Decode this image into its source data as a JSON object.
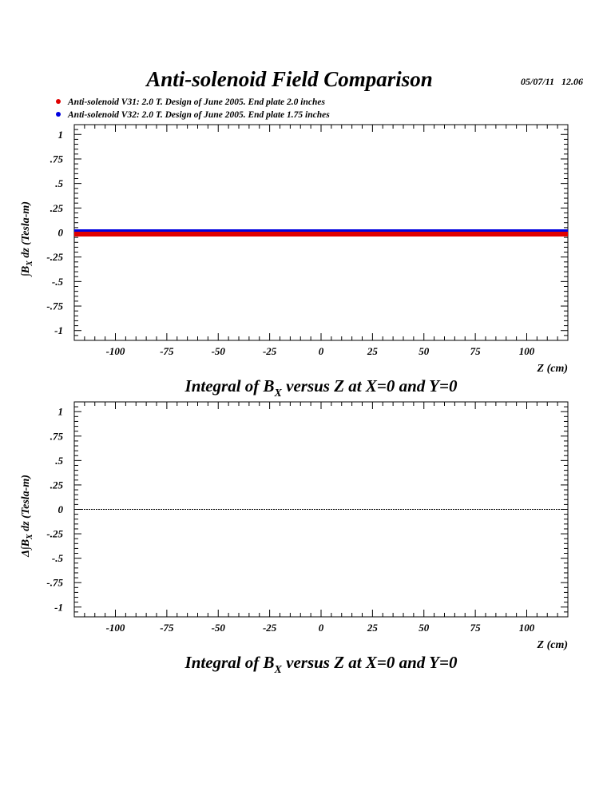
{
  "header": {
    "title": "Anti-solenoid Field Comparison",
    "date": "05/07/11",
    "time": "12.06"
  },
  "legend": [
    {
      "label": "Anti-solenoid V31: 2.0 T. Design of June 2005. End plate 2.0 inches",
      "color": "#e00000"
    },
    {
      "label": "Anti-solenoid V32: 2.0 T. Design of June 2005. End plate 1.75 inches",
      "color": "#0000e0"
    }
  ],
  "chart_data": [
    {
      "type": "line",
      "title_parts": {
        "pre": "Integral of B",
        "sub": "X",
        "post": " versus Z at X=0 and Y=0"
      },
      "xlabel": "Z (cm)",
      "ylabel_parts": {
        "pre": "∫B",
        "sub": "X",
        "post": " dz  (Tesla-m)"
      },
      "xlim": [
        -120,
        120
      ],
      "ylim": [
        -1.1,
        1.1
      ],
      "xticks": [
        -100,
        -75,
        -50,
        -25,
        0,
        25,
        50,
        75,
        100
      ],
      "yticks": [
        1,
        0.75,
        0.5,
        0.25,
        0,
        -0.25,
        -0.5,
        -0.75,
        -1
      ],
      "series": [
        {
          "color": "#e00000",
          "x": [
            -120,
            120
          ],
          "y": [
            0,
            0
          ]
        },
        {
          "color": "#0000e0",
          "x": [
            -120,
            120
          ],
          "y": [
            0,
            0
          ]
        }
      ]
    },
    {
      "type": "line",
      "title_parts": {
        "pre": "Integral of B",
        "sub": "X",
        "post": " versus Z at X=0 and Y=0"
      },
      "xlabel": "Z (cm)",
      "ylabel_parts": {
        "pre": "Δ∫B",
        "sub": "X",
        "post": " dz  (Tesla-m)"
      },
      "xlim": [
        -120,
        120
      ],
      "ylim": [
        -1.1,
        1.1
      ],
      "xticks": [
        -100,
        -75,
        -50,
        -25,
        0,
        25,
        50,
        75,
        100
      ],
      "yticks": [
        1,
        0.75,
        0.5,
        0.25,
        0,
        -0.25,
        -0.5,
        -0.75,
        -1
      ],
      "series": [
        {
          "color": "#000000",
          "x": [
            -120,
            120
          ],
          "y": [
            0,
            0
          ]
        }
      ]
    }
  ]
}
